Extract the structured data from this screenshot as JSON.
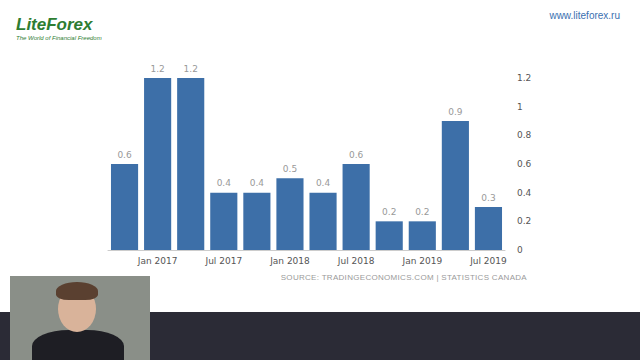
{
  "header": {
    "logo": "LiteForex",
    "tagline": "The World of Financial Freedom",
    "url": "www.liteforex.ru"
  },
  "chart_data": {
    "type": "bar",
    "categories": [
      null,
      "Jan 2017",
      null,
      "Jul 2017",
      null,
      "Jan 2018",
      null,
      "Jul 2018",
      null,
      "Jan 2019",
      null,
      "Jul 2019"
    ],
    "values": [
      0.6,
      1.2,
      1.2,
      0.4,
      0.4,
      0.5,
      0.4,
      0.6,
      0.2,
      0.2,
      0.9,
      0.3
    ],
    "color": "#3d6fa8",
    "ylim": [
      0,
      1.2
    ],
    "yticks": [
      0,
      0.2,
      0.4,
      0.6,
      0.8,
      1,
      1.2
    ],
    "grid": false,
    "data_labels": true,
    "annotations": [
      "SOURCE: TRADINGECONOMICS.COM | STATISTICS CANADA"
    ]
  }
}
